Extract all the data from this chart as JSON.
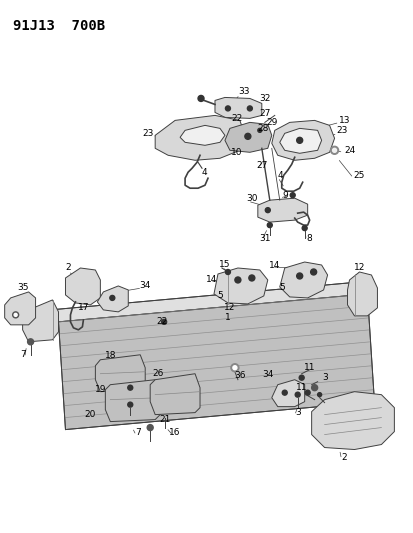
{
  "title": "91J13  700B",
  "bg_color": "#ffffff",
  "fig_width": 4.14,
  "fig_height": 5.33,
  "dpi": 100,
  "label_fontsize": 6.5,
  "label_color": "#000000",
  "line_color": "#404040",
  "line_width": 0.7
}
